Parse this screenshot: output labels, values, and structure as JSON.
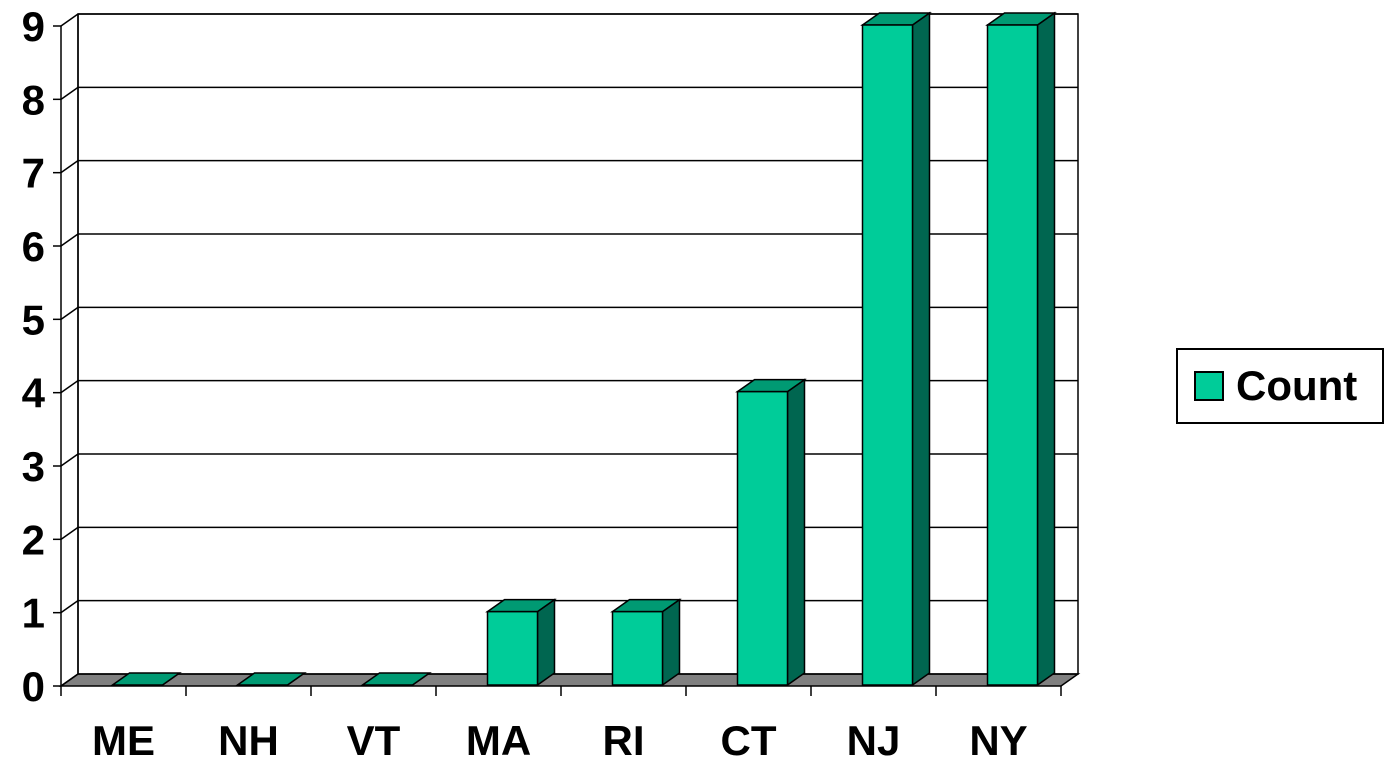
{
  "chart_data": {
    "type": "bar",
    "categories": [
      "ME",
      "NH",
      "VT",
      "MA",
      "RI",
      "CT",
      "NJ",
      "NY"
    ],
    "series": [
      {
        "name": "Count",
        "values": [
          0,
          0,
          0,
          1,
          1,
          4,
          9,
          9
        ]
      }
    ],
    "y_ticks": [
      "0",
      "1",
      "2",
      "3",
      "4",
      "5",
      "6",
      "7",
      "8",
      "9"
    ],
    "ylim": [
      0,
      9
    ],
    "grid": true,
    "legend": "right",
    "style": "3d-column",
    "colors": {
      "front": "#00cc99",
      "top": "#009a73",
      "side": "#006650",
      "floor": "#808080"
    }
  },
  "legend": {
    "label": "Count"
  }
}
